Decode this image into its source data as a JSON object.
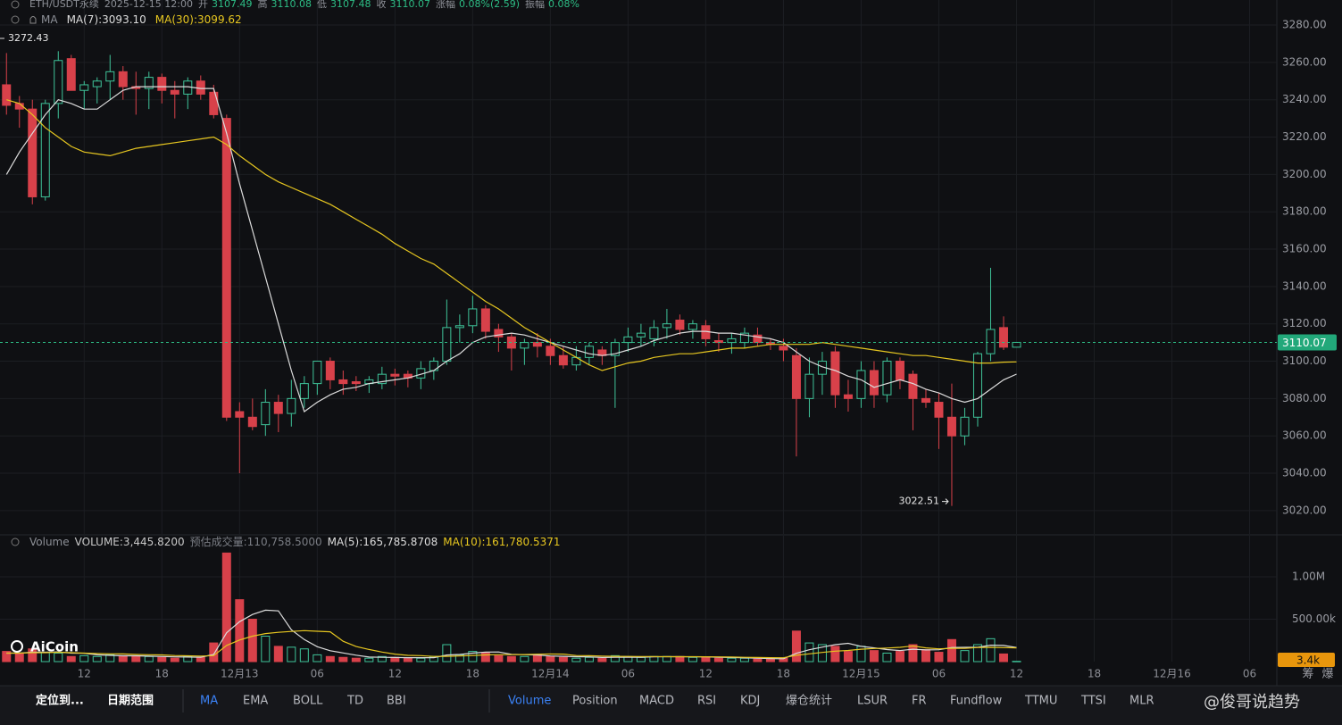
{
  "chart_data": {
    "type": "candlestick",
    "header": {
      "symbol": "ETH/USDT永续",
      "time": "2025-12-15 12:00",
      "open_label": "开",
      "high_label": "高",
      "low_label": "低",
      "close_label": "收",
      "change_label": "涨幅",
      "change": "0.08%(2.59)",
      "amplitude_label": "振幅",
      "amplitude": "0.08%",
      "indicator_label": "MA"
    },
    "annotations": [
      {
        "text": "3272.43"
      }
    ],
    "xlim": [
      -0.5,
      98.1
    ],
    "xticks": [
      {
        "value": 6,
        "label": "12"
      },
      {
        "value": 12,
        "label": "18"
      },
      {
        "value": 18,
        "label": "12月13"
      },
      {
        "value": 24,
        "label": "06"
      },
      {
        "value": 30,
        "label": "12"
      },
      {
        "value": 36,
        "label": "18"
      },
      {
        "value": 42,
        "label": "12月14"
      },
      {
        "value": 48,
        "label": "06"
      },
      {
        "value": 54,
        "label": "12"
      },
      {
        "value": 60,
        "label": "18"
      },
      {
        "value": 66,
        "label": "12月15"
      },
      {
        "value": 72,
        "label": "06"
      },
      {
        "value": 78,
        "label": "12"
      },
      {
        "value": 84,
        "label": "18"
      },
      {
        "value": 90,
        "label": "12月16"
      },
      {
        "value": 96,
        "label": "06"
      }
    ],
    "ylim": [
      3007.5,
      3293.4
    ],
    "yticks": [
      {
        "value": 3020,
        "label": "3020.00"
      },
      {
        "value": 3040,
        "label": "3040.00"
      },
      {
        "value": 3060,
        "label": "3060.00"
      },
      {
        "value": 3080,
        "label": "3080.00"
      },
      {
        "value": 3100,
        "label": "3100.00"
      },
      {
        "value": 3120,
        "label": "3120.00"
      },
      {
        "value": 3140,
        "label": "3140.00"
      },
      {
        "value": 3160,
        "label": "3160.00"
      },
      {
        "value": 3180,
        "label": "3180.00"
      },
      {
        "value": 3200,
        "label": "3200.00"
      },
      {
        "value": 3220,
        "label": "3220.00"
      },
      {
        "value": 3240,
        "label": "3240.00"
      },
      {
        "value": 3260,
        "label": "3260.00"
      },
      {
        "value": 3280,
        "label": "3280.00"
      }
    ],
    "up_color": "#3fc49a",
    "down_color": "#d8414a",
    "grid": true,
    "open": [
      3248,
      3238,
      3235,
      3188,
      3238,
      3262,
      3245,
      3247,
      3250,
      3255,
      3247,
      3246,
      3252,
      3245,
      3243,
      3250,
      3244,
      3230,
      3073,
      3070,
      3066,
      3078,
      3072,
      3080,
      3088,
      3100,
      3090,
      3089,
      3088,
      3088,
      3093,
      3093,
      3091,
      3095,
      3100,
      3118,
      3119,
      3128,
      3117,
      3113,
      3107,
      3110,
      3108,
      3103,
      3098,
      3102,
      3106,
      3103,
      3110,
      3113,
      3112,
      3118,
      3122,
      3117,
      3119,
      3111,
      3110,
      3110,
      3114,
      3110,
      3108,
      3103,
      3080,
      3093,
      3105,
      3082,
      3080,
      3095,
      3082,
      3100,
      3093,
      3080,
      3078,
      3070,
      3060,
      3070,
      3104,
      3118,
      3107.49
    ],
    "high": [
      3265,
      3242,
      3240,
      3240,
      3266,
      3264,
      3250,
      3252,
      3264,
      3258,
      3255,
      3255,
      3254,
      3250,
      3252,
      3253,
      3248,
      3232,
      3078,
      3080,
      3085,
      3082,
      3090,
      3092,
      3100,
      3102,
      3095,
      3092,
      3092,
      3097,
      3096,
      3095,
      3100,
      3102,
      3133,
      3125,
      3135,
      3130,
      3120,
      3115,
      3112,
      3115,
      3112,
      3108,
      3108,
      3110,
      3108,
      3112,
      3118,
      3120,
      3122,
      3128,
      3125,
      3122,
      3122,
      3115,
      3115,
      3118,
      3118,
      3112,
      3112,
      3107,
      3102,
      3105,
      3108,
      3090,
      3100,
      3100,
      3102,
      3102,
      3095,
      3085,
      3083,
      3088,
      3075,
      3105,
      3150,
      3124,
      3110.08
    ],
    "low": [
      3232,
      3225,
      3184,
      3186,
      3230,
      3245,
      3235,
      3238,
      3240,
      3240,
      3232,
      3235,
      3238,
      3230,
      3235,
      3240,
      3230,
      3068,
      3040,
      3063,
      3060,
      3062,
      3065,
      3075,
      3082,
      3085,
      3082,
      3084,
      3083,
      3085,
      3087,
      3086,
      3085,
      3090,
      3098,
      3110,
      3115,
      3112,
      3105,
      3095,
      3098,
      3102,
      3098,
      3096,
      3095,
      3098,
      3098,
      3075,
      3105,
      3108,
      3108,
      3112,
      3114,
      3112,
      3108,
      3105,
      3104,
      3107,
      3108,
      3106,
      3100,
      3049,
      3070,
      3082,
      3075,
      3073,
      3075,
      3075,
      3078,
      3085,
      3063,
      3075,
      3053,
      3022.51,
      3055,
      3065,
      3100,
      3106,
      3107.48
    ],
    "close": [
      3237,
      3235,
      3188,
      3238,
      3261,
      3245,
      3248,
      3250,
      3255,
      3247,
      3246,
      3252,
      3245,
      3243,
      3250,
      3243,
      3232,
      3070,
      3070,
      3065,
      3078,
      3072,
      3080,
      3088,
      3100,
      3090,
      3088,
      3088,
      3090,
      3093,
      3092,
      3091,
      3096,
      3100,
      3118,
      3119,
      3128,
      3116,
      3113,
      3107,
      3110,
      3108,
      3103,
      3098,
      3102,
      3108,
      3103,
      3110,
      3113,
      3115,
      3118,
      3120,
      3117,
      3120,
      3112,
      3110,
      3112,
      3115,
      3110,
      3109,
      3106,
      3080,
      3093,
      3100,
      3082,
      3080,
      3095,
      3082,
      3100,
      3090,
      3080,
      3078,
      3070,
      3060,
      3070,
      3104,
      3117,
      3107.5,
      3110.07
    ],
    "series": [
      {
        "name": "MA(7):3093.10",
        "color": "#dcdcdc",
        "values": [
          3200,
          3212,
          3222,
          3232,
          3240,
          3238,
          3235,
          3235,
          3240,
          3245,
          3247,
          3247,
          3247,
          3247,
          3247,
          3246,
          3246,
          3222,
          3195,
          3170,
          3145,
          3120,
          3095,
          3073,
          3078,
          3082,
          3085,
          3086,
          3088,
          3089,
          3090,
          3091,
          3093,
          3095,
          3100,
          3104,
          3110,
          3113,
          3114,
          3115,
          3114,
          3112,
          3110,
          3108,
          3106,
          3104,
          3103,
          3104,
          3106,
          3108,
          3111,
          3113,
          3115,
          3116,
          3116,
          3115,
          3115,
          3114,
          3113,
          3112,
          3110,
          3105,
          3100,
          3097,
          3095,
          3092,
          3090,
          3086,
          3088,
          3090,
          3088,
          3085,
          3083,
          3080,
          3078,
          3080,
          3085,
          3090,
          3093.1
        ]
      },
      {
        "name": "MA(30):3099.62",
        "color": "#e6c620",
        "values": [
          3240,
          3238,
          3232,
          3225,
          3220,
          3215,
          3212,
          3211,
          3210,
          3212,
          3214,
          3215,
          3216,
          3217,
          3218,
          3219,
          3220,
          3216,
          3210,
          3205,
          3200,
          3196,
          3193,
          3190,
          3187,
          3184,
          3180,
          3176,
          3172,
          3168,
          3163,
          3159,
          3155,
          3152,
          3147,
          3142,
          3137,
          3132,
          3128,
          3123,
          3118,
          3114,
          3110,
          3106,
          3102,
          3098,
          3095,
          3097,
          3099,
          3100,
          3102,
          3103,
          3104,
          3104,
          3105,
          3106,
          3107,
          3107,
          3108,
          3109,
          3109,
          3109,
          3109,
          3110,
          3109,
          3108,
          3107,
          3106,
          3105,
          3104,
          3103,
          3103,
          3102,
          3101,
          3100,
          3099,
          3099,
          3099.5,
          3099.62
        ]
      }
    ],
    "volume_title": "Volume",
    "volume_text": "VOLUME:3,445.8200",
    "estimate_text": "预估成交量:110,758.5000",
    "volume": [
      120000,
      90000,
      150000,
      110000,
      100000,
      60000,
      70000,
      60000,
      80000,
      70000,
      60000,
      60000,
      50000,
      40000,
      60000,
      50000,
      220000,
      1280000,
      730000,
      500000,
      300000,
      180000,
      170000,
      150000,
      80000,
      60000,
      50000,
      40000,
      40000,
      60000,
      50000,
      40000,
      40000,
      60000,
      200000,
      80000,
      120000,
      100000,
      70000,
      60000,
      60000,
      80000,
      60000,
      50000,
      40000,
      50000,
      40000,
      70000,
      60000,
      50000,
      60000,
      60000,
      60000,
      50000,
      50000,
      40000,
      40000,
      40000,
      30000,
      30000,
      40000,
      360000,
      220000,
      200000,
      180000,
      120000,
      180000,
      130000,
      100000,
      120000,
      200000,
      140000,
      110000,
      260000,
      130000,
      200000,
      270000,
      90000,
      3445.82
    ],
    "last_volume_label": "3.4k",
    "vlim": [
      0,
      1484000
    ],
    "vticks": [
      {
        "value": 500000,
        "label": "500.00k"
      },
      {
        "value": 1000000,
        "label": "1.00M"
      }
    ],
    "volume_series": [
      {
        "name": "MA(5):165,785.8708",
        "color": "#dcdcdc",
        "values": [
          100000,
          100000,
          110000,
          110000,
          115000,
          100000,
          98000,
          80000,
          74000,
          68000,
          68000,
          64000,
          60000,
          56000,
          54000,
          52000,
          84000,
          340000,
          470000,
          556000,
          606000,
          598000,
          376000,
          260000,
          176000,
          128000,
          102000,
          76000,
          54000,
          50000,
          48000,
          46000,
          46000,
          46000,
          78000,
          84000,
          100000,
          112000,
          114000,
          86000,
          82000,
          78000,
          66000,
          62000,
          58000,
          56000,
          48000,
          50000,
          52000,
          52000,
          56000,
          58000,
          58000,
          56000,
          56000,
          52000,
          48000,
          44000,
          40000,
          36000,
          34000,
          98000,
          140000,
          170000,
          200000,
          216000,
          180000,
          162000,
          142000,
          130000,
          146000,
          138000,
          140000,
          166000,
          168000,
          168000,
          194000,
          190000,
          165785.87
        ]
      },
      {
        "name": "MA(10):161,780.5371",
        "color": "#e6c620",
        "values": [
          100000,
          100000,
          105000,
          105000,
          110000,
          105000,
          100000,
          95000,
          92000,
          91000,
          84000,
          81000,
          79000,
          72000,
          68000,
          65000,
          71000,
          190000,
          255000,
          300000,
          330000,
          345000,
          356000,
          365000,
          358000,
          352000,
          240000,
          178000,
          143000,
          113000,
          88000,
          74000,
          70000,
          61000,
          62000,
          66000,
          73000,
          79000,
          82000,
          82000,
          83000,
          87000,
          89000,
          88000,
          72000,
          69000,
          65000,
          62000,
          61000,
          60000,
          60000,
          58000,
          58000,
          58000,
          57000,
          56000,
          54000,
          51000,
          48000,
          46000,
          45000,
          75000,
          92000,
          108000,
          123000,
          132000,
          146000,
          155000,
          160000,
          168000,
          184000,
          162000,
          151000,
          157000,
          156000,
          166000,
          168000,
          165000,
          161780.54
        ]
      }
    ],
    "axis_buttons": [
      "筹",
      "爆"
    ],
    "logo": "AiCoin",
    "toolbar": [
      "定位到...",
      "日期范围",
      "MA",
      "EMA",
      "BOLL",
      "TD",
      "BBI",
      "Volume",
      "Position",
      "MACD",
      "RSI",
      "KDJ",
      "爆仓统计",
      "LSUR",
      "FR",
      "Fundflow",
      "TTMU",
      "TTSI",
      "MLR"
    ],
    "watermark": "@俊哥说趋势"
  }
}
